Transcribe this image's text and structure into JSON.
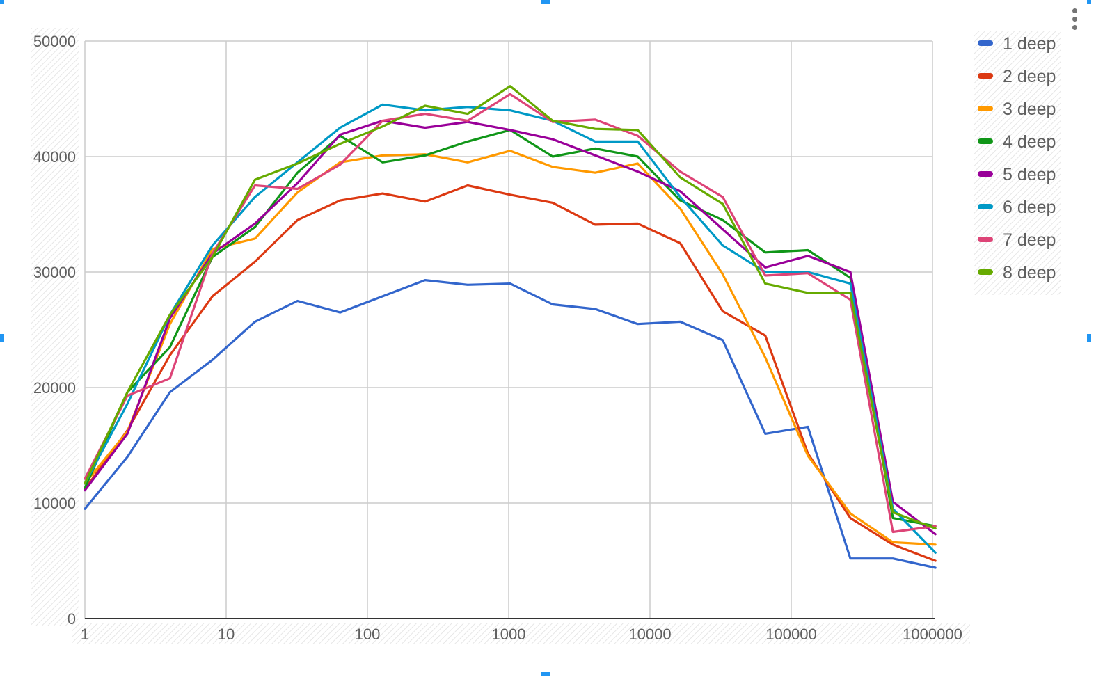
{
  "chart_data": {
    "type": "line",
    "title": "",
    "xlabel": "",
    "ylabel": "",
    "x_scale": "log",
    "xlim": [
      1,
      1000000
    ],
    "ylim": [
      0,
      50000
    ],
    "x_ticks": [
      "1",
      "10",
      "100",
      "1000",
      "10000",
      "100000",
      "1000000"
    ],
    "y_ticks": [
      "0",
      "10000",
      "20000",
      "30000",
      "40000",
      "50000"
    ],
    "grid": true,
    "legend_position": "right",
    "x": [
      1,
      2,
      4,
      8,
      16,
      32,
      64,
      128,
      256,
      512,
      1024,
      2048,
      4096,
      8192,
      16384,
      32768,
      65536,
      131072,
      262144,
      524288,
      1048576
    ],
    "series": [
      {
        "name": "1 deep",
        "color": "#3366cc",
        "values": [
          9500,
          14000,
          19600,
          22400,
          25700,
          27500,
          26500,
          27900,
          29300,
          28900,
          29000,
          27200,
          26800,
          25500,
          25700,
          24100,
          16000,
          16600,
          5200,
          5200,
          4400
        ]
      },
      {
        "name": "2 deep",
        "color": "#dc3912",
        "values": [
          11200,
          16300,
          22800,
          27900,
          30900,
          34500,
          36200,
          36800,
          36100,
          37500,
          36700,
          36000,
          34100,
          34200,
          32500,
          26600,
          24500,
          14300,
          8700,
          6400,
          5000
        ]
      },
      {
        "name": "3 deep",
        "color": "#ff9900",
        "values": [
          11700,
          16200,
          25500,
          32000,
          32900,
          36900,
          39500,
          40100,
          40200,
          39500,
          40500,
          39100,
          38600,
          39400,
          35500,
          29800,
          22600,
          14100,
          9100,
          6600,
          6400
        ]
      },
      {
        "name": "4 deep",
        "color": "#109618",
        "values": [
          11300,
          19600,
          23500,
          31300,
          33900,
          38600,
          41800,
          39500,
          40100,
          41300,
          42300,
          40000,
          40700,
          40000,
          36200,
          34500,
          31700,
          31900,
          29500,
          8700,
          8000
        ]
      },
      {
        "name": "5 deep",
        "color": "#990099",
        "values": [
          11100,
          16000,
          26000,
          31600,
          34200,
          37700,
          41900,
          43100,
          42500,
          43000,
          42300,
          41500,
          40100,
          38700,
          37000,
          33700,
          30400,
          31400,
          30000,
          10100,
          7300
        ]
      },
      {
        "name": "6 deep",
        "color": "#0099c6",
        "values": [
          11700,
          18600,
          26300,
          32300,
          36500,
          39500,
          42500,
          44500,
          44000,
          44300,
          44000,
          43100,
          41300,
          41300,
          36500,
          32300,
          30000,
          30000,
          29000,
          9500,
          5700
        ]
      },
      {
        "name": "7 deep",
        "color": "#dd4477",
        "values": [
          12100,
          19300,
          20800,
          31600,
          37500,
          37200,
          39300,
          43100,
          43700,
          43100,
          45400,
          43000,
          43200,
          41800,
          38700,
          36500,
          29700,
          29900,
          27600,
          7500,
          8000
        ]
      },
      {
        "name": "8 deep",
        "color": "#66aa00",
        "values": [
          11700,
          19600,
          26300,
          31300,
          38000,
          39400,
          41100,
          42600,
          44400,
          43700,
          46100,
          43100,
          42400,
          42300,
          38200,
          35900,
          29000,
          28200,
          28200,
          9200,
          7800
        ]
      }
    ]
  }
}
